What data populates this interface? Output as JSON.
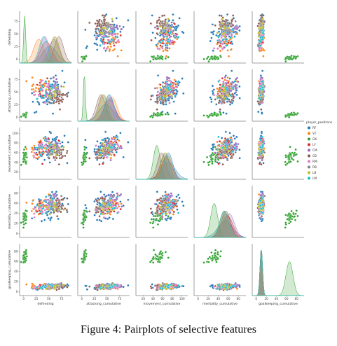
{
  "caption": "Figure 4: Pairplots of selective features",
  "chart_data": {
    "type": "scatter",
    "subtype": "pairplot",
    "variables": [
      "defending",
      "attacking_cumulative",
      "movement_cumulative",
      "mentality_cumulative",
      "goalkeeping_cumulative"
    ],
    "ticks": {
      "defending": [
        0,
        25,
        50,
        75
      ],
      "attacking_cumulative": [
        0,
        25,
        50,
        75
      ],
      "movement_cumulative": [
        20,
        40,
        60,
        80,
        100
      ],
      "mentality_cumulative": [
        0,
        20,
        40,
        60,
        80
      ],
      "goalkeeping_cumulative": [
        0,
        20,
        40,
        60,
        80
      ]
    },
    "ranges": {
      "defending": [
        -8,
        95
      ],
      "attacking_cumulative": [
        -8,
        95
      ],
      "movement_cumulative": [
        5,
        112
      ],
      "mentality_cumulative": [
        -8,
        95
      ],
      "goalkeeping_cumulative": [
        -8,
        95
      ]
    },
    "diagonal": "kde",
    "legend": {
      "title": "player_positions",
      "placement": "right",
      "entries": [
        {
          "name": "RF",
          "color": "#1f77b4"
        },
        {
          "name": "ST",
          "color": "#ff7f0e"
        },
        {
          "name": "GK",
          "color": "#2ca02c"
        },
        {
          "name": "LF",
          "color": "#d62728"
        },
        {
          "name": "CM",
          "color": "#9467bd"
        },
        {
          "name": "CB",
          "color": "#8c564b"
        },
        {
          "name": "RM",
          "color": "#e377c2"
        },
        {
          "name": "RB",
          "color": "#7f7f7f"
        },
        {
          "name": "LB",
          "color": "#bcbd22"
        },
        {
          "name": "LM",
          "color": "#17becf"
        }
      ]
    },
    "groups": [
      {
        "position": "RF",
        "centroid": {
          "defending": 52,
          "attacking_cumulative": 48,
          "movement_cumulative": 72,
          "mentality_cumulative": 54,
          "goalkeeping_cumulative": 10
        },
        "spread": 14
      },
      {
        "position": "ST",
        "centroid": {
          "defending": 30,
          "attacking_cumulative": 60,
          "movement_cumulative": 70,
          "mentality_cumulative": 55,
          "goalkeeping_cumulative": 10
        },
        "spread": 10
      },
      {
        "position": "GK",
        "centroid": {
          "defending": 2,
          "attacking_cumulative": 5,
          "movement_cumulative": 48,
          "mentality_cumulative": 32,
          "goalkeeping_cumulative": 66
        },
        "spread": 7
      },
      {
        "position": "LF",
        "centroid": {
          "defending": 45,
          "attacking_cumulative": 55,
          "movement_cumulative": 68,
          "mentality_cumulative": 58,
          "goalkeeping_cumulative": 10
        },
        "spread": 11
      },
      {
        "position": "CM",
        "centroid": {
          "defending": 60,
          "attacking_cumulative": 55,
          "movement_cumulative": 65,
          "mentality_cumulative": 62,
          "goalkeeping_cumulative": 10
        },
        "spread": 10
      },
      {
        "position": "CB",
        "centroid": {
          "defending": 70,
          "attacking_cumulative": 38,
          "movement_cumulative": 58,
          "mentality_cumulative": 55,
          "goalkeeping_cumulative": 10
        },
        "spread": 9
      },
      {
        "position": "RM",
        "centroid": {
          "defending": 42,
          "attacking_cumulative": 54,
          "movement_cumulative": 72,
          "mentality_cumulative": 52,
          "goalkeeping_cumulative": 10
        },
        "spread": 9
      },
      {
        "position": "RB",
        "centroid": {
          "defending": 62,
          "attacking_cumulative": 42,
          "movement_cumulative": 65,
          "mentality_cumulative": 52,
          "goalkeeping_cumulative": 10
        },
        "spread": 9
      },
      {
        "position": "LB",
        "centroid": {
          "defending": 62,
          "attacking_cumulative": 44,
          "movement_cumulative": 66,
          "mentality_cumulative": 52,
          "goalkeeping_cumulative": 10
        },
        "spread": 9
      },
      {
        "position": "LM",
        "centroid": {
          "defending": 40,
          "attacking_cumulative": 55,
          "movement_cumulative": 72,
          "mentality_cumulative": 52,
          "goalkeeping_cumulative": 10
        },
        "spread": 9
      }
    ]
  }
}
